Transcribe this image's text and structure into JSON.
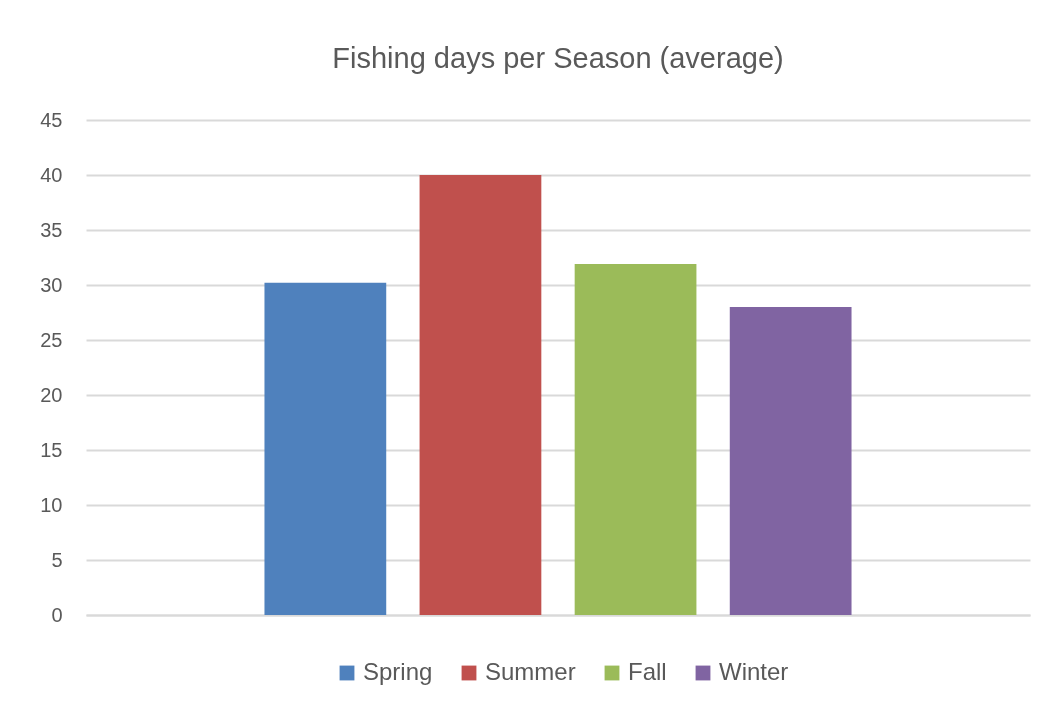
{
  "chart_data": {
    "type": "bar",
    "title": "Fishing days per Season (average)",
    "categories": [
      null
    ],
    "series": [
      {
        "name": "Spring",
        "color": "#4f81bd",
        "values": [
          30.2
        ]
      },
      {
        "name": "Summer",
        "color": "#c0504d",
        "values": [
          40
        ]
      },
      {
        "name": "Fall",
        "color": "#9bbb59",
        "values": [
          31.9
        ]
      },
      {
        "name": "Winter",
        "color": "#8064a2",
        "values": [
          28
        ]
      }
    ],
    "ylim": [
      0,
      45
    ],
    "yticks": [
      0,
      5,
      10,
      15,
      20,
      25,
      30,
      35,
      40,
      45
    ],
    "grid": "y",
    "legend": "bottom",
    "tick_labels": "y"
  }
}
